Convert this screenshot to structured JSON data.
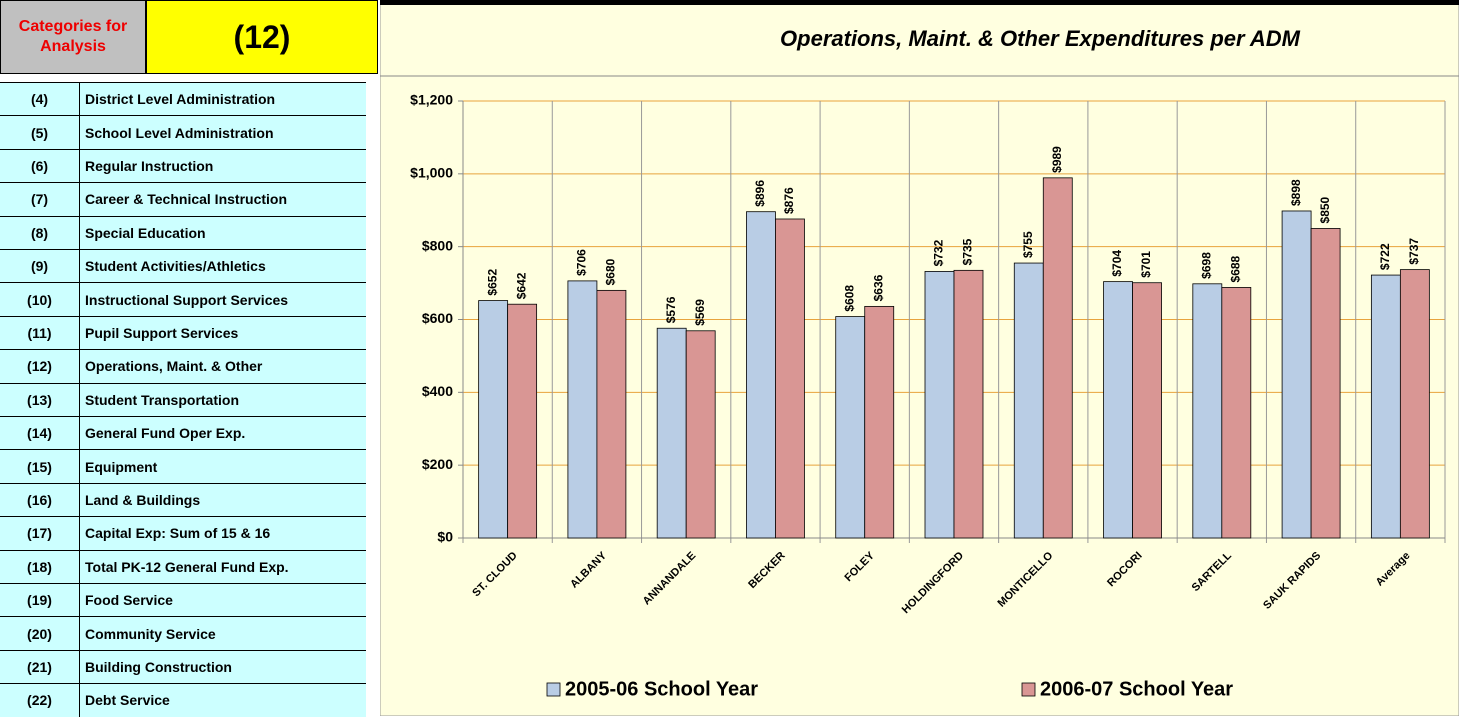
{
  "sidebar": {
    "header": "Categories for Analysis",
    "selected": "(12)",
    "items": [
      {
        "num": "(4)",
        "label": "District Level Administration"
      },
      {
        "num": "(5)",
        "label": "School Level Administration"
      },
      {
        "num": "(6)",
        "label": "Regular Instruction"
      },
      {
        "num": "(7)",
        "label": "Career & Technical Instruction"
      },
      {
        "num": "(8)",
        "label": "Special Education"
      },
      {
        "num": "(9)",
        "label": "Student Activities/Athletics"
      },
      {
        "num": "(10)",
        "label": "Instructional Support Services"
      },
      {
        "num": "(11)",
        "label": "Pupil Support Services"
      },
      {
        "num": "(12)",
        "label": "Operations, Maint. & Other"
      },
      {
        "num": "(13)",
        "label": "Student Transportation"
      },
      {
        "num": "(14)",
        "label": "General Fund Oper Exp."
      },
      {
        "num": "(15)",
        "label": "Equipment"
      },
      {
        "num": "(16)",
        "label": "Land & Buildings"
      },
      {
        "num": "(17)",
        "label": "Capital Exp: Sum of 15 & 16"
      },
      {
        "num": "(18)",
        "label": "Total PK-12 General Fund Exp."
      },
      {
        "num": "(19)",
        "label": "Food Service"
      },
      {
        "num": "(20)",
        "label": "Community Service"
      },
      {
        "num": "(21)",
        "label": "Building Construction"
      },
      {
        "num": "(22)",
        "label": "Debt Service"
      }
    ]
  },
  "chart_data": {
    "type": "bar",
    "title": "Operations, Maint. & Other  Expenditures per ADM",
    "categories": [
      "ST. CLOUD",
      "ALBANY",
      "ANNANDALE",
      "BECKER",
      "FOLEY",
      "HOLDINGFORD",
      "MONTICELLO",
      "ROCORI",
      "SARTELL",
      "SAUK RAPIDS",
      "Average"
    ],
    "series": [
      {
        "name": "2005-06 School Year",
        "color": "#B9CDE5",
        "values": [
          652,
          706,
          576,
          896,
          608,
          732,
          755,
          704,
          698,
          898,
          722
        ],
        "value_labels": [
          "$652",
          "$706",
          "$576",
          "$896",
          "$608",
          "$732",
          "$755",
          "$704",
          "$698",
          "$898",
          "$722"
        ]
      },
      {
        "name": "2006-07 School Year",
        "color": "#D99694",
        "values": [
          642,
          680,
          569,
          876,
          636,
          735,
          989,
          701,
          688,
          850,
          737
        ],
        "value_labels": [
          "$642",
          "$680",
          "$569",
          "$876",
          "$636",
          "$735",
          "$989",
          "$701",
          "$688",
          "$850",
          "$737"
        ]
      }
    ],
    "ylim": [
      0,
      1200
    ],
    "yticks": [
      {
        "value": 0,
        "label": "$0"
      },
      {
        "value": 200,
        "label": "$200"
      },
      {
        "value": 400,
        "label": "$400"
      },
      {
        "value": 600,
        "label": "$600"
      },
      {
        "value": 800,
        "label": "$800"
      },
      {
        "value": 1000,
        "label": "$1,000"
      },
      {
        "value": 1200,
        "label": "$1,200"
      }
    ],
    "grid": true,
    "grid_color": "#E8A33C",
    "legend": "bottom"
  }
}
